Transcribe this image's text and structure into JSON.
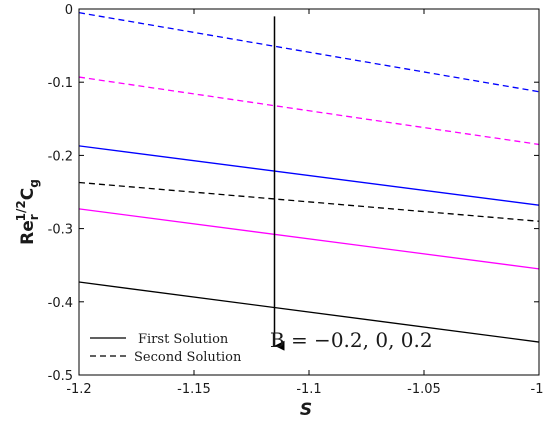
{
  "chart_data": {
    "type": "line",
    "xlabel": "S",
    "ylabel": {
      "base": "Re",
      "sub1": "r",
      "sup": "1/2",
      "main": "C",
      "sub2": "g"
    },
    "xlim": [
      -1.2,
      -1
    ],
    "ylim": [
      -0.5,
      0
    ],
    "xticks": [
      -1.2,
      -1.15,
      -1.1,
      -1.05,
      -1
    ],
    "xtick_labels": [
      "-1.2",
      "-1.15",
      "-1.1",
      "-1.05",
      "-1"
    ],
    "yticks": [
      0,
      -0.1,
      -0.2,
      -0.3,
      -0.4,
      -0.5
    ],
    "ytick_labels": [
      "0",
      "-0.1",
      "-0.2",
      "-0.3",
      "-0.4",
      "-0.5"
    ],
    "grid": false,
    "legend_position": "bottom-left",
    "legend": [
      {
        "label": "First Solution",
        "style": "solid"
      },
      {
        "label": "Second Solution",
        "style": "dashed"
      }
    ],
    "annotation": {
      "text": "B = −0.2, 0, 0.2",
      "arrow": {
        "x": -1.115,
        "y_from": -0.01,
        "y_to": -0.46
      },
      "position": {
        "x": -1.117,
        "y": -0.462
      }
    },
    "series": [
      {
        "x": [
          -1.2,
          -1
        ],
        "y": [
          -0.005,
          -0.113
        ],
        "color": "#0000ff",
        "style": "dashed"
      },
      {
        "x": [
          -1.2,
          -1
        ],
        "y": [
          -0.093,
          -0.185
        ],
        "color": "#ff00ff",
        "style": "dashed"
      },
      {
        "x": [
          -1.2,
          -1
        ],
        "y": [
          -0.187,
          -0.268
        ],
        "color": "#0000ff",
        "style": "solid"
      },
      {
        "x": [
          -1.2,
          -1
        ],
        "y": [
          -0.237,
          -0.29
        ],
        "color": "#000000",
        "style": "dashed"
      },
      {
        "x": [
          -1.2,
          -1
        ],
        "y": [
          -0.273,
          -0.355
        ],
        "color": "#ff00ff",
        "style": "solid"
      },
      {
        "x": [
          -1.2,
          -1
        ],
        "y": [
          -0.373,
          -0.455
        ],
        "color": "#000000",
        "style": "solid"
      }
    ]
  }
}
